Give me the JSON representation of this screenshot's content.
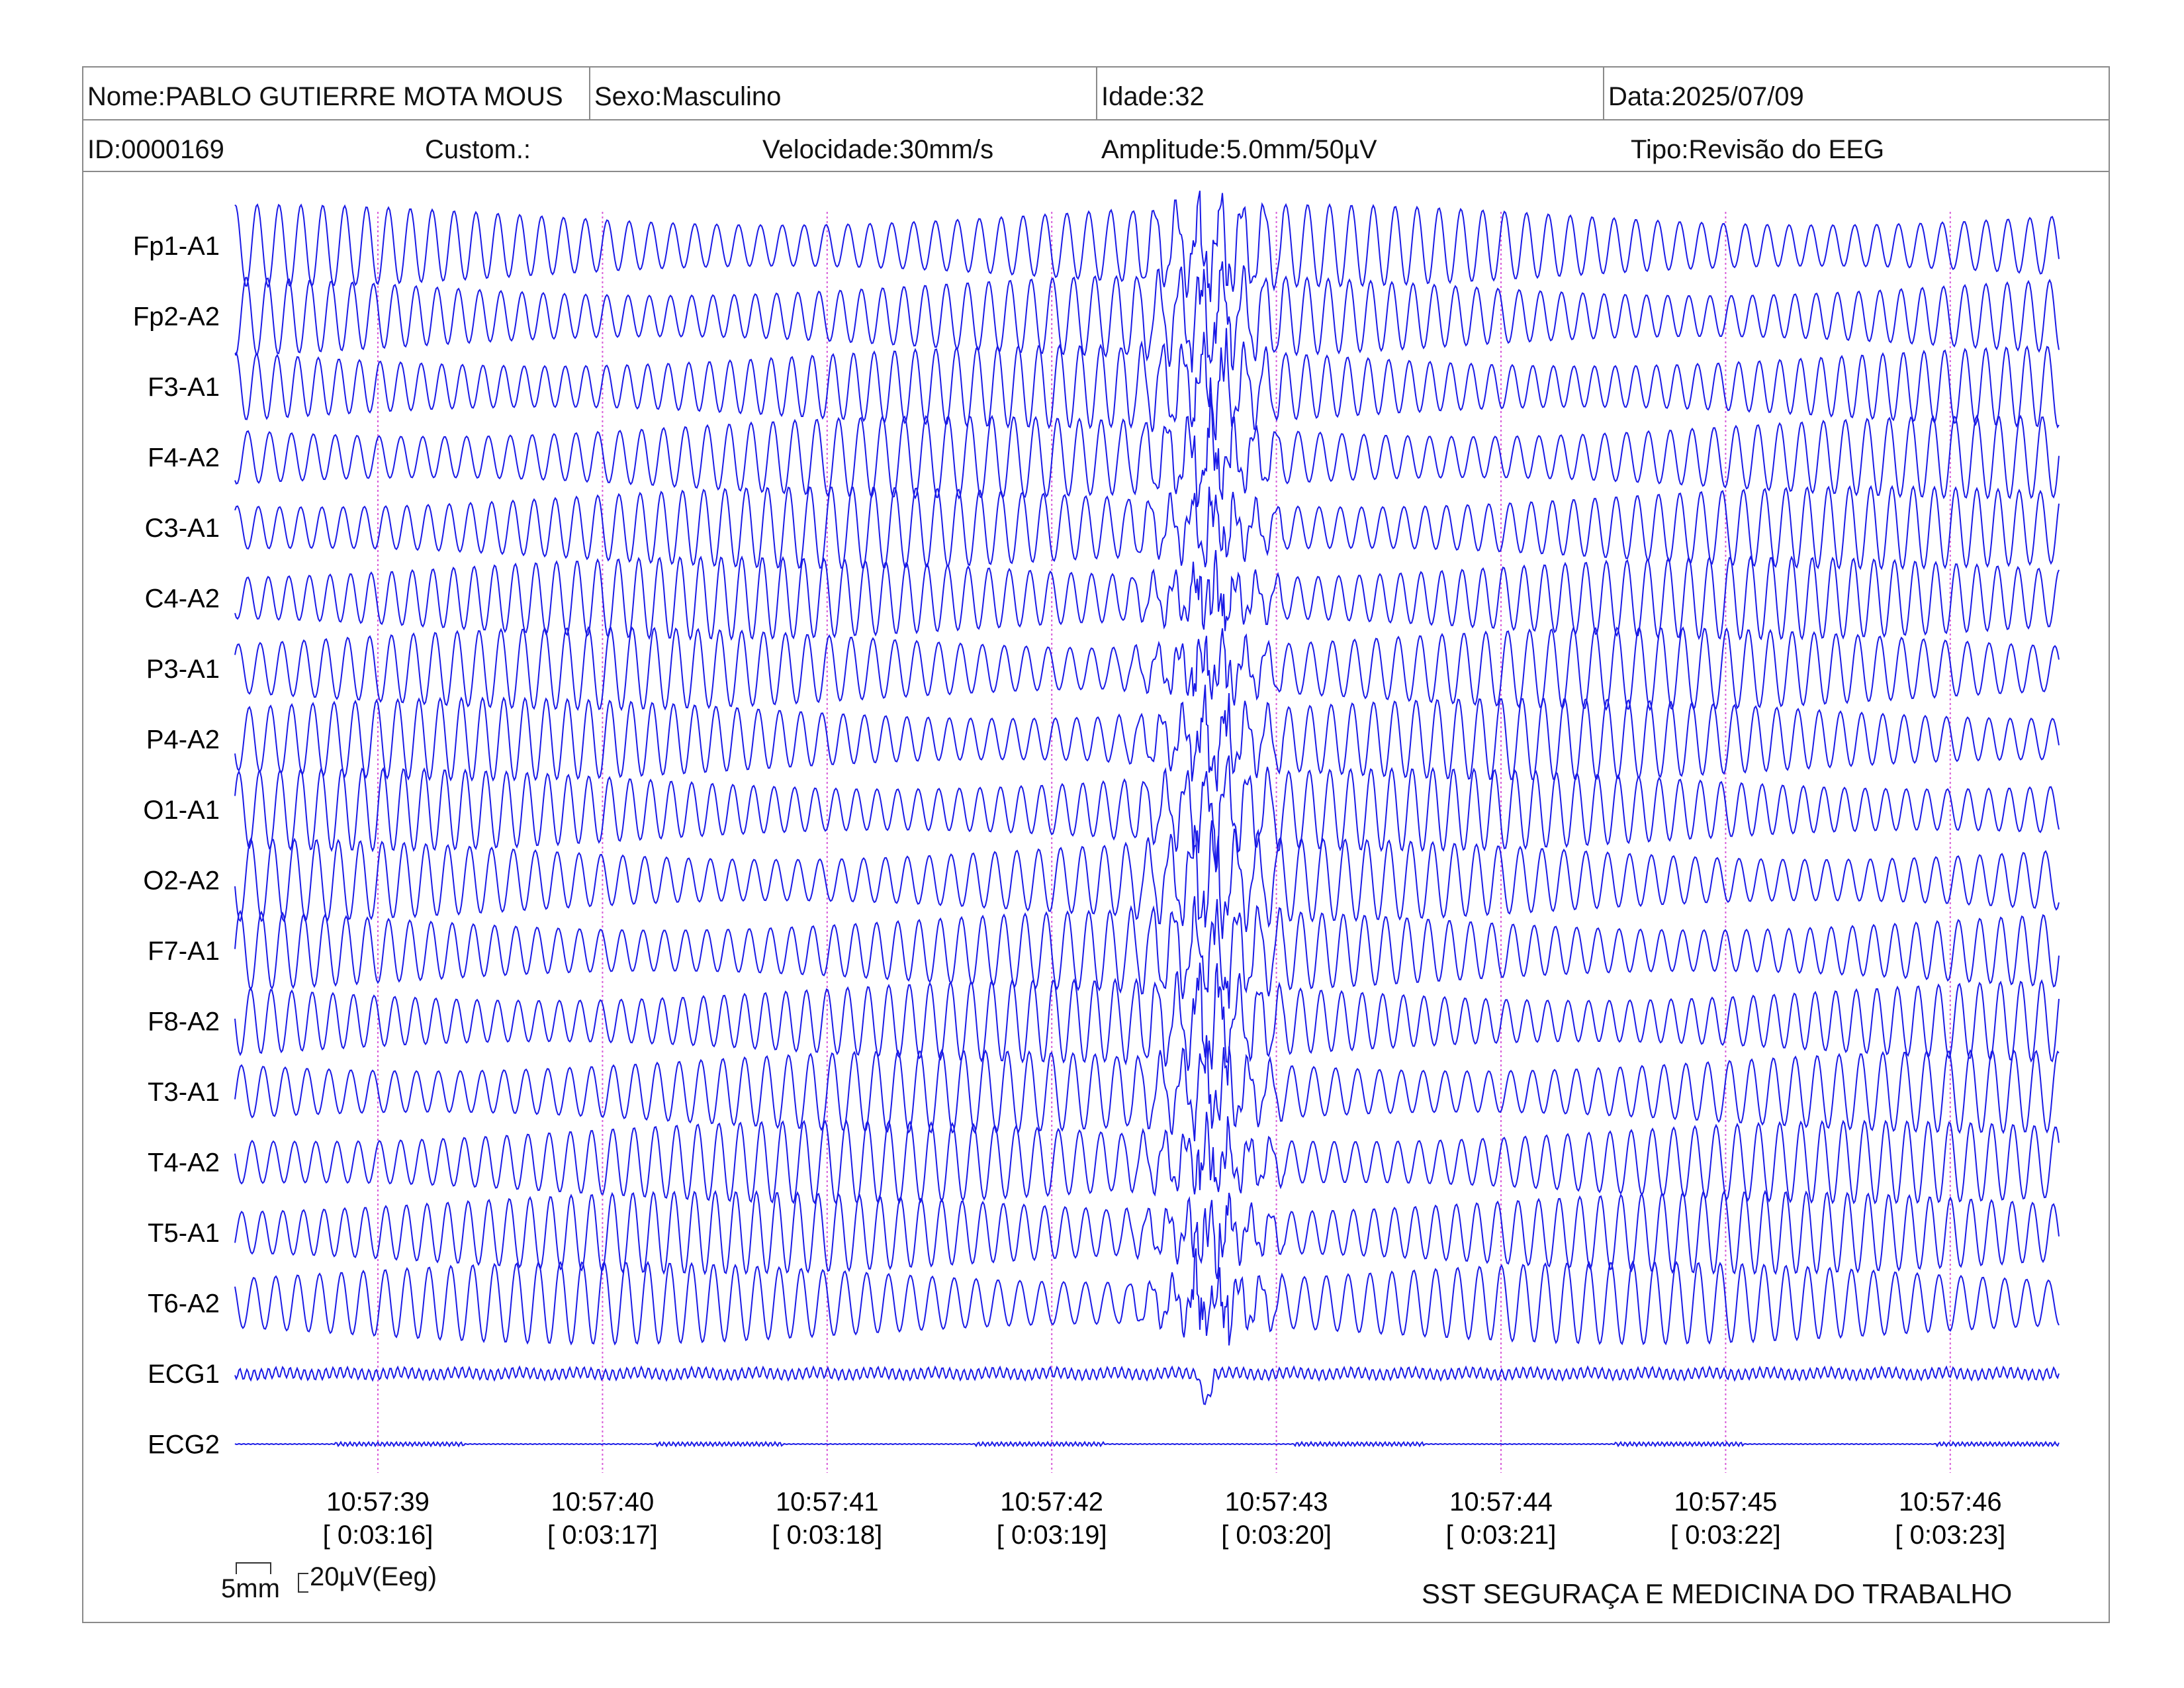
{
  "header": {
    "nome": "Nome:PABLO GUTIERRE MOTA MOUS",
    "sexo": "Sexo:Masculino",
    "idade": "Idade:32",
    "data": "Data:2025/07/09",
    "id": "ID:0000169",
    "custom": "Custom.:",
    "velocidade": "Velocidade:30mm/s",
    "amplitude": "Amplitude:5.0mm/50µV",
    "tipo": "Tipo:Revisão do EEG"
  },
  "scale": {
    "time_label": "5mm",
    "amp_label": "20µV(Eeg)"
  },
  "footer": {
    "company": "SST SEGURAÇA E MEDICINA DO TRABALHO"
  },
  "colors": {
    "trace": "#1a1ae6",
    "marker": "#d85ad8",
    "border": "#8a8a8a"
  },
  "chart_data": {
    "type": "line",
    "title": "",
    "channels": [
      "Fp1-A1",
      "Fp2-A2",
      "F3-A1",
      "F4-A2",
      "C3-A1",
      "C4-A2",
      "P3-A1",
      "P4-A2",
      "O1-A1",
      "O2-A2",
      "F7-A1",
      "F8-A2",
      "T3-A1",
      "T4-A2",
      "T5-A1",
      "T6-A2",
      "ECG1",
      "ECG2"
    ],
    "time_marks": [
      {
        "clock": "10:57:39",
        "elapsed": "[ 0:03:16]"
      },
      {
        "clock": "10:57:40",
        "elapsed": "[ 0:03:17]"
      },
      {
        "clock": "10:57:41",
        "elapsed": "[ 0:03:18]"
      },
      {
        "clock": "10:57:42",
        "elapsed": "[ 0:03:19]"
      },
      {
        "clock": "10:57:43",
        "elapsed": "[ 0:03:20]"
      },
      {
        "clock": "10:57:44",
        "elapsed": "[ 0:03:21]"
      },
      {
        "clock": "10:57:45",
        "elapsed": "[ 0:03:22]"
      },
      {
        "clock": "10:57:46",
        "elapsed": "[ 0:03:23]"
      }
    ],
    "grid": false
  }
}
